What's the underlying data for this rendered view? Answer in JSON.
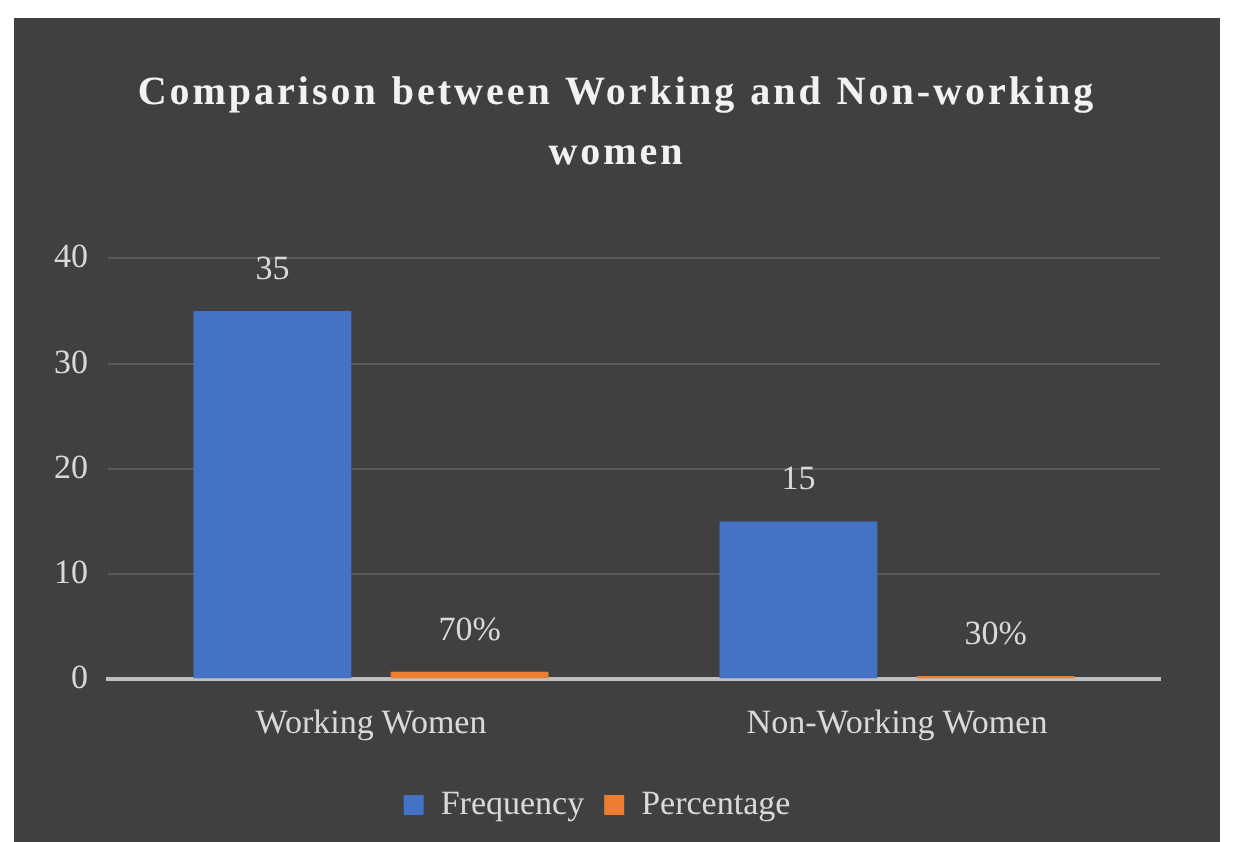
{
  "chart_data": {
    "type": "bar",
    "title": "Comparison between Working and Non-working women",
    "categories": [
      "Working Women",
      "Non-Working Women"
    ],
    "series": [
      {
        "name": "Frequency",
        "color": "#4472c4",
        "values": [
          35,
          15
        ],
        "value_labels": [
          "35",
          "15"
        ]
      },
      {
        "name": "Percentage",
        "color": "#ed7d31",
        "values": [
          0.7,
          0.3
        ],
        "value_labels": [
          "70%",
          "30%"
        ]
      }
    ],
    "ylim": [
      0,
      40
    ],
    "yticks": [
      0,
      10,
      20,
      30,
      40
    ],
    "grid": "y",
    "legend": "bottom"
  }
}
